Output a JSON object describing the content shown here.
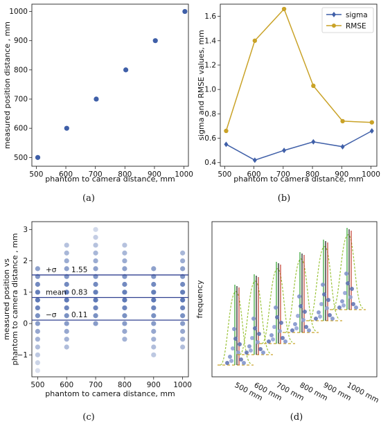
{
  "colors": {
    "blue": "#3f5fa8",
    "gold": "#c9a227",
    "dashed": "#c9a227",
    "green": "#2ca02c",
    "red": "#c0392b",
    "black": "#111111"
  },
  "chart_data": [
    {
      "type": "scatter",
      "caption": "(a)",
      "xlabel": "phantom to camera distance, mm",
      "ylabel": "measured position distance , mm",
      "xlim": [
        485,
        1015
      ],
      "ylim": [
        470,
        1025
      ],
      "xticks": [
        "500",
        "600",
        "700",
        "800",
        "900",
        "1000"
      ],
      "yticks": [
        "500",
        "600",
        "700",
        "800",
        "900",
        "1000"
      ],
      "x": [
        505,
        603,
        703,
        803,
        903,
        1003
      ],
      "y": [
        500,
        600,
        700,
        800,
        900,
        1000
      ]
    },
    {
      "type": "line",
      "caption": "(b)",
      "xlabel": "phantom to camera distance, mm",
      "ylabel": "sigma and RMSE values, mm",
      "xlim": [
        485,
        1020
      ],
      "ylim": [
        0.37,
        1.7
      ],
      "xticks": [
        "500",
        "600",
        "700",
        "800",
        "900",
        "1000"
      ],
      "yticks": [
        "0.4",
        "0.6",
        "0.8",
        "1.0",
        "1.2",
        "1.4",
        "1.6"
      ],
      "legend_position": "top-right",
      "x": [
        505,
        603,
        703,
        803,
        903,
        1003
      ],
      "series": [
        {
          "name": "sigma",
          "marker": "diamond",
          "values": [
            0.55,
            0.42,
            0.5,
            0.57,
            0.53,
            0.66
          ]
        },
        {
          "name": "RMSE",
          "marker": "circle",
          "values": [
            0.66,
            1.4,
            1.66,
            1.03,
            0.74,
            0.73
          ]
        }
      ]
    },
    {
      "type": "scatter",
      "caption": "(c)",
      "xlabel": "phantom to camera distance, mm",
      "ylabel": "measured position vs\nphantom to camera distance , mm",
      "xlim": [
        480,
        1020
      ],
      "ylim": [
        -1.7,
        3.25
      ],
      "xticks": [
        "500",
        "600",
        "700",
        "800",
        "900",
        "1000"
      ],
      "yticks": [
        "−1",
        "0",
        "1",
        "2",
        "3"
      ],
      "x_positions": [
        500,
        600,
        700,
        800,
        900,
        1000
      ],
      "columns": [
        {
          "x": 500,
          "values": [
            -1.5,
            -1.25,
            -1.0,
            -0.75,
            -0.5,
            -0.25,
            0.0,
            0.25,
            0.5,
            0.75,
            1.0,
            1.25,
            1.5,
            1.75
          ]
        },
        {
          "x": 600,
          "values": [
            -0.75,
            -0.5,
            -0.25,
            0.0,
            0.25,
            0.5,
            0.75,
            1.0,
            1.25,
            1.5,
            1.75,
            2.0,
            2.25,
            2.5
          ]
        },
        {
          "x": 700,
          "values": [
            0.0,
            0.25,
            0.5,
            0.75,
            1.0,
            1.25,
            1.5,
            1.75,
            2.0,
            2.25,
            2.5,
            2.75,
            3.0
          ]
        },
        {
          "x": 800,
          "values": [
            -0.5,
            -0.25,
            0.0,
            0.25,
            0.5,
            0.75,
            1.0,
            1.25,
            1.5,
            1.75,
            2.0,
            2.25,
            2.5
          ]
        },
        {
          "x": 900,
          "values": [
            -1.0,
            -0.75,
            -0.5,
            -0.25,
            0.0,
            0.25,
            0.5,
            0.75,
            1.0,
            1.25,
            1.5,
            1.75
          ]
        },
        {
          "x": 1000,
          "values": [
            -0.75,
            -0.5,
            -0.25,
            0.0,
            0.25,
            0.5,
            0.75,
            1.0,
            1.25,
            1.5,
            1.75,
            2.0,
            2.25
          ]
        }
      ],
      "hlines": [
        {
          "label": "+σ",
          "value": 1.55,
          "value_text": "1.55"
        },
        {
          "label": "mean",
          "value": 0.83,
          "value_text": "0.83"
        },
        {
          "label": "−σ",
          "value": 0.11,
          "value_text": "0.11"
        }
      ]
    },
    {
      "type": "line",
      "caption": "(d)",
      "ylabel": "frequency",
      "xticks": [
        "500 mm",
        "600 mm",
        "700 mm",
        "800 mm",
        "900 mm",
        "1000 mm"
      ]
    }
  ]
}
